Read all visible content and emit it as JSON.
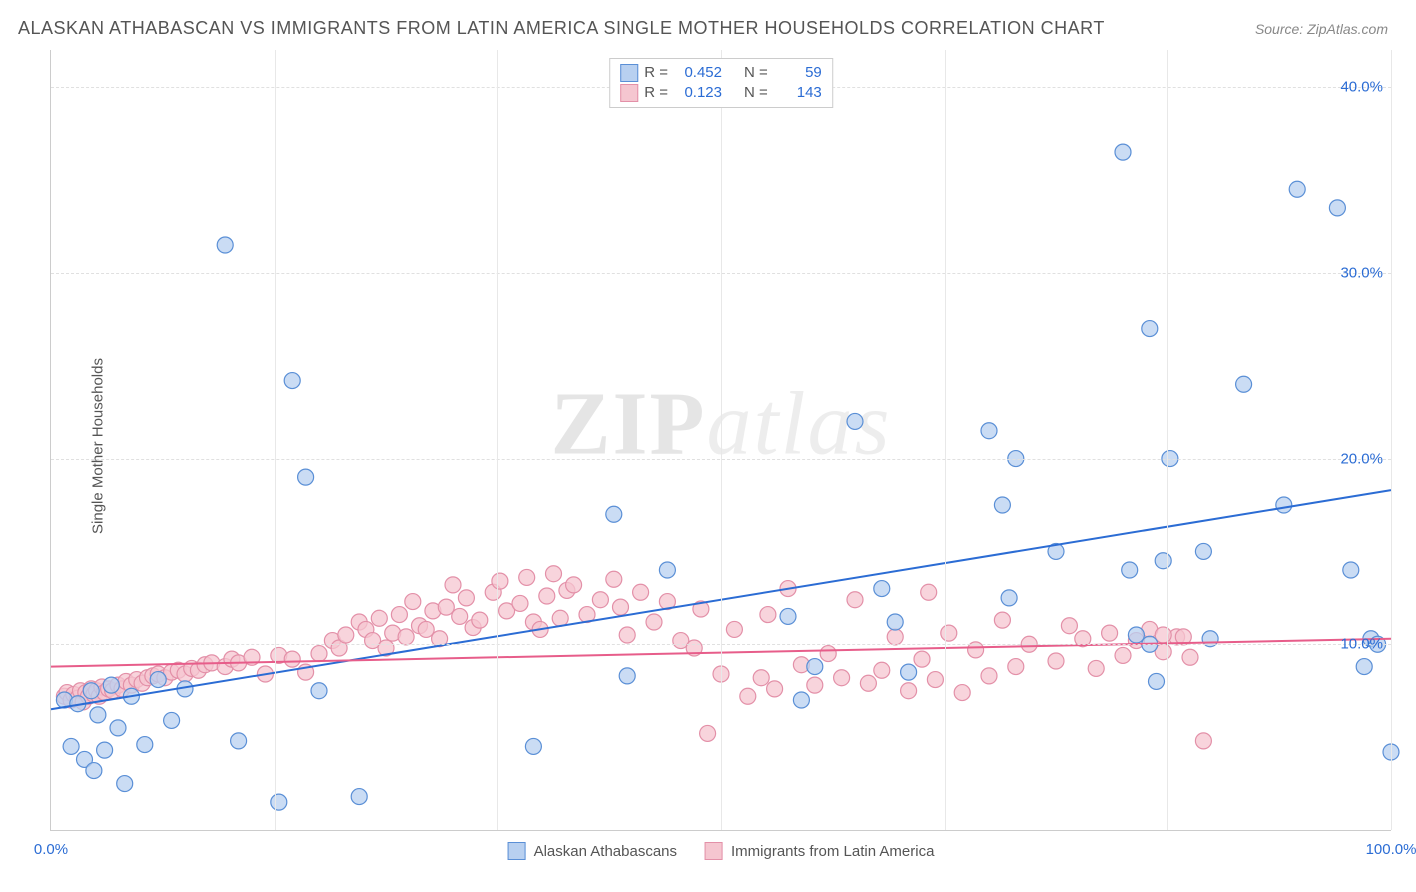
{
  "header": {
    "title": "ALASKAN ATHABASCAN VS IMMIGRANTS FROM LATIN AMERICA SINGLE MOTHER HOUSEHOLDS CORRELATION CHART",
    "source_prefix": "Source: ",
    "source_name": "ZipAtlas.com"
  },
  "ylabel": "Single Mother Households",
  "watermark": {
    "left": "ZIP",
    "right": "atlas"
  },
  "chart": {
    "type": "scatter",
    "background_color": "#ffffff",
    "grid_color_h": "#e0e0e0",
    "grid_color_v": "#e8e8e8",
    "xlim": [
      0,
      100
    ],
    "ylim": [
      0,
      42
    ],
    "xticks": [
      0,
      100
    ],
    "xtick_labels": [
      "0.0%",
      "100.0%"
    ],
    "xgrid": [
      16.7,
      33.3,
      50,
      66.7,
      83.3,
      100
    ],
    "yticks": [
      10,
      20,
      30,
      40
    ],
    "ytick_labels": [
      "10.0%",
      "20.0%",
      "30.0%",
      "40.0%"
    ],
    "series": [
      {
        "id": "athabascan",
        "label": "Alaskan Athabascans",
        "color_fill": "#b8d0f0",
        "color_stroke": "#5a8fd6",
        "marker_radius": 8,
        "marker_opacity": 0.75,
        "R": "0.452",
        "N": "59",
        "trend": {
          "x1": 0,
          "y1": 6.5,
          "x2": 100,
          "y2": 18.3,
          "color": "#2b6cd4",
          "width": 2
        },
        "points": [
          [
            1,
            7
          ],
          [
            1.5,
            4.5
          ],
          [
            2,
            6.8
          ],
          [
            2.5,
            3.8
          ],
          [
            3,
            7.5
          ],
          [
            3.2,
            3.2
          ],
          [
            3.5,
            6.2
          ],
          [
            4,
            4.3
          ],
          [
            4.5,
            7.8
          ],
          [
            5,
            5.5
          ],
          [
            5.5,
            2.5
          ],
          [
            6,
            7.2
          ],
          [
            7,
            4.6
          ],
          [
            8,
            8.1
          ],
          [
            9,
            5.9
          ],
          [
            10,
            7.6
          ],
          [
            13,
            31.5
          ],
          [
            14,
            4.8
          ],
          [
            17,
            1.5
          ],
          [
            18,
            24.2
          ],
          [
            19,
            19
          ],
          [
            20,
            7.5
          ],
          [
            23,
            1.8
          ],
          [
            36,
            4.5
          ],
          [
            42,
            17
          ],
          [
            43,
            8.3
          ],
          [
            46,
            14
          ],
          [
            55,
            11.5
          ],
          [
            56,
            7
          ],
          [
            57,
            8.8
          ],
          [
            60,
            22
          ],
          [
            62,
            13
          ],
          [
            63,
            11.2
          ],
          [
            64,
            8.5
          ],
          [
            70,
            21.5
          ],
          [
            71,
            17.5
          ],
          [
            71.5,
            12.5
          ],
          [
            72,
            20
          ],
          [
            75,
            15
          ],
          [
            80,
            36.5
          ],
          [
            82,
            10
          ],
          [
            81,
            10.5
          ],
          [
            82,
            27
          ],
          [
            83,
            14.5
          ],
          [
            80.5,
            14
          ],
          [
            82.5,
            8
          ],
          [
            83.5,
            20
          ],
          [
            86,
            15
          ],
          [
            86.5,
            10.3
          ],
          [
            89,
            24
          ],
          [
            92,
            17.5
          ],
          [
            93,
            34.5
          ],
          [
            96,
            33.5
          ],
          [
            97,
            14
          ],
          [
            98,
            8.8
          ],
          [
            98.5,
            10.3
          ],
          [
            99,
            10
          ],
          [
            100,
            4.2
          ]
        ]
      },
      {
        "id": "latinamerica",
        "label": "Immigrants from Latin America",
        "color_fill": "#f5c6d0",
        "color_stroke": "#e390a8",
        "marker_radius": 8,
        "marker_opacity": 0.75,
        "R": "0.123",
        "N": "143",
        "trend": {
          "x1": 0,
          "y1": 8.8,
          "x2": 100,
          "y2": 10.3,
          "color": "#e75d8a",
          "width": 2
        },
        "points": [
          [
            1,
            7.2
          ],
          [
            1.2,
            7.4
          ],
          [
            1.5,
            7
          ],
          [
            1.7,
            7.3
          ],
          [
            2,
            7.1
          ],
          [
            2.2,
            7.5
          ],
          [
            2.4,
            6.9
          ],
          [
            2.6,
            7.4
          ],
          [
            2.8,
            7.2
          ],
          [
            3,
            7.6
          ],
          [
            3.2,
            7.3
          ],
          [
            3.4,
            7.5
          ],
          [
            3.6,
            7.2
          ],
          [
            3.8,
            7.7
          ],
          [
            4,
            7.4
          ],
          [
            4.3,
            7.6
          ],
          [
            4.6,
            7.5
          ],
          [
            5,
            7.8
          ],
          [
            5.3,
            7.6
          ],
          [
            5.6,
            8
          ],
          [
            6,
            7.8
          ],
          [
            6.4,
            8.1
          ],
          [
            6.8,
            7.9
          ],
          [
            7.2,
            8.2
          ],
          [
            7.6,
            8.3
          ],
          [
            8,
            8.4
          ],
          [
            8.5,
            8.2
          ],
          [
            9,
            8.5
          ],
          [
            9.5,
            8.6
          ],
          [
            10,
            8.4
          ],
          [
            10.5,
            8.7
          ],
          [
            11,
            8.6
          ],
          [
            11.5,
            8.9
          ],
          [
            12,
            9
          ],
          [
            13,
            8.8
          ],
          [
            13.5,
            9.2
          ],
          [
            14,
            9
          ],
          [
            15,
            9.3
          ],
          [
            16,
            8.4
          ],
          [
            17,
            9.4
          ],
          [
            18,
            9.2
          ],
          [
            19,
            8.5
          ],
          [
            20,
            9.5
          ],
          [
            21,
            10.2
          ],
          [
            21.5,
            9.8
          ],
          [
            22,
            10.5
          ],
          [
            23,
            11.2
          ],
          [
            23.5,
            10.8
          ],
          [
            24,
            10.2
          ],
          [
            24.5,
            11.4
          ],
          [
            25,
            9.8
          ],
          [
            25.5,
            10.6
          ],
          [
            26,
            11.6
          ],
          [
            26.5,
            10.4
          ],
          [
            27,
            12.3
          ],
          [
            27.5,
            11
          ],
          [
            28,
            10.8
          ],
          [
            28.5,
            11.8
          ],
          [
            29,
            10.3
          ],
          [
            29.5,
            12
          ],
          [
            30,
            13.2
          ],
          [
            30.5,
            11.5
          ],
          [
            31,
            12.5
          ],
          [
            31.5,
            10.9
          ],
          [
            32,
            11.3
          ],
          [
            33,
            12.8
          ],
          [
            33.5,
            13.4
          ],
          [
            34,
            11.8
          ],
          [
            35,
            12.2
          ],
          [
            35.5,
            13.6
          ],
          [
            36,
            11.2
          ],
          [
            36.5,
            10.8
          ],
          [
            37,
            12.6
          ],
          [
            37.5,
            13.8
          ],
          [
            38,
            11.4
          ],
          [
            38.5,
            12.9
          ],
          [
            39,
            13.2
          ],
          [
            40,
            11.6
          ],
          [
            41,
            12.4
          ],
          [
            42,
            13.5
          ],
          [
            42.5,
            12
          ],
          [
            43,
            10.5
          ],
          [
            44,
            12.8
          ],
          [
            45,
            11.2
          ],
          [
            46,
            12.3
          ],
          [
            47,
            10.2
          ],
          [
            48,
            9.8
          ],
          [
            48.5,
            11.9
          ],
          [
            49,
            5.2
          ],
          [
            50,
            8.4
          ],
          [
            51,
            10.8
          ],
          [
            52,
            7.2
          ],
          [
            53,
            8.2
          ],
          [
            53.5,
            11.6
          ],
          [
            54,
            7.6
          ],
          [
            55,
            13
          ],
          [
            56,
            8.9
          ],
          [
            57,
            7.8
          ],
          [
            58,
            9.5
          ],
          [
            59,
            8.2
          ],
          [
            60,
            12.4
          ],
          [
            61,
            7.9
          ],
          [
            62,
            8.6
          ],
          [
            63,
            10.4
          ],
          [
            64,
            7.5
          ],
          [
            65,
            9.2
          ],
          [
            65.5,
            12.8
          ],
          [
            66,
            8.1
          ],
          [
            67,
            10.6
          ],
          [
            68,
            7.4
          ],
          [
            69,
            9.7
          ],
          [
            70,
            8.3
          ],
          [
            71,
            11.3
          ],
          [
            72,
            8.8
          ],
          [
            73,
            10
          ],
          [
            75,
            9.1
          ],
          [
            76,
            11
          ],
          [
            77,
            10.3
          ],
          [
            78,
            8.7
          ],
          [
            79,
            10.6
          ],
          [
            80,
            9.4
          ],
          [
            81,
            10.2
          ],
          [
            82,
            10.8
          ],
          [
            83,
            9.6
          ],
          [
            84,
            10.4
          ],
          [
            85,
            9.3
          ],
          [
            86,
            4.8
          ],
          [
            83,
            10.5
          ],
          [
            84.5,
            10.4
          ]
        ]
      }
    ],
    "legend_top": {
      "R_label": "R =",
      "N_label": "N ="
    }
  }
}
